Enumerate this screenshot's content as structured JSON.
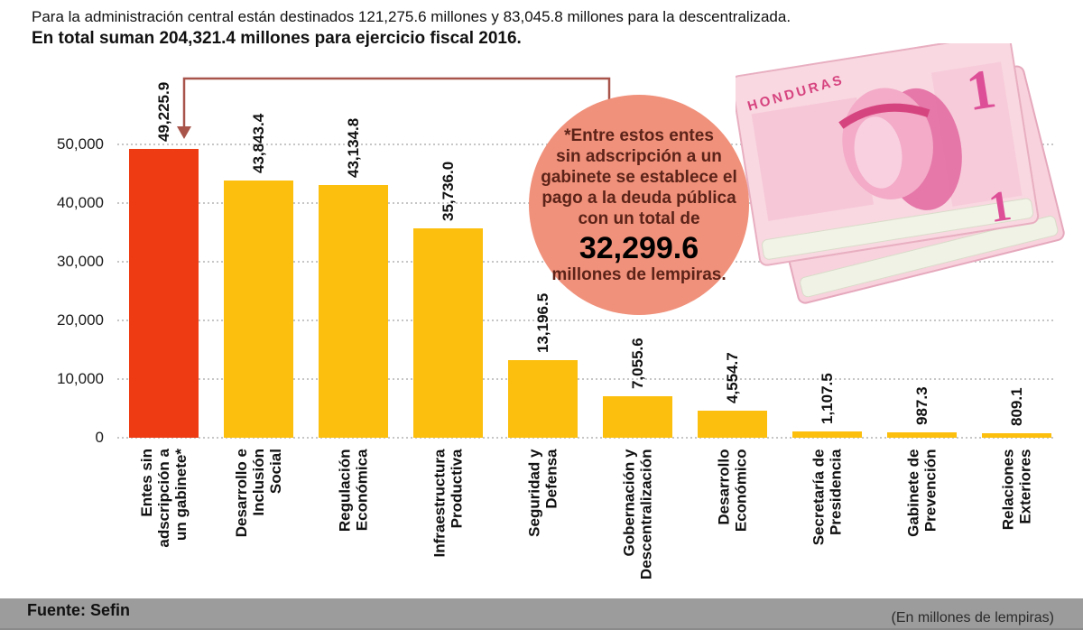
{
  "chart_data": {
    "type": "bar",
    "subtitle": "Para la administración central están destinados 121,275.6 millones y 83,045.8 millones para la descentralizada.",
    "title": "En total suman 204,321.4 millones para ejercicio fiscal 2016.",
    "categories": [
      "Entes sin\nadscripción a\nun gabinete*",
      "Desarrollo e\nInclusión\nSocial",
      "Regulación\nEconómica",
      "Infraestructura\nProductiva",
      "Seguridad y\nDefensa",
      "Gobernación y\nDescentralización",
      "Desarrollo\nEconómico",
      "Secretaría de\nPresidencia",
      "Gabinete de\nPrevención",
      "Relaciones\nExteriores"
    ],
    "values": [
      49225.9,
      43843.4,
      43134.8,
      35736.0,
      13196.5,
      7055.6,
      4554.7,
      1107.5,
      987.3,
      809.1
    ],
    "value_labels": [
      "49,225.9",
      "43,843.4",
      "43,134.8",
      "35,736.0",
      "13,196.5",
      "7,055.6",
      "4,554.7",
      "1,107.5",
      "987.3",
      "809.1"
    ],
    "y_ticks": [
      0,
      10000,
      20000,
      30000,
      40000,
      50000
    ],
    "y_tick_labels": [
      "0",
      "10,000",
      "20,000",
      "30,000",
      "40,000",
      "50,000"
    ],
    "ylim": [
      0,
      50000
    ],
    "grid": "dotted horizontal",
    "highlight_index": 0,
    "colors": {
      "highlight": "#ee3b13",
      "bar": "#fcbf0e",
      "grid": "#c6c6c6"
    },
    "annotation_value": 32299.6,
    "source": "Fuente: Sefin",
    "units": "(En millones de lempiras)"
  },
  "annotation": {
    "text": "*Entre estos entes\nsin adscripción a un\ngabinete se establece el\npago a la deuda pública\ncon un total de",
    "amount": "32,299.6",
    "caption": "millones de lempiras.",
    "circle_color": "#f0917b",
    "arrow_color": "#a8544b"
  },
  "banknote": {
    "denomination": "1",
    "country": "HONDURAS"
  },
  "footer_bar_color": "#9c9c9c"
}
